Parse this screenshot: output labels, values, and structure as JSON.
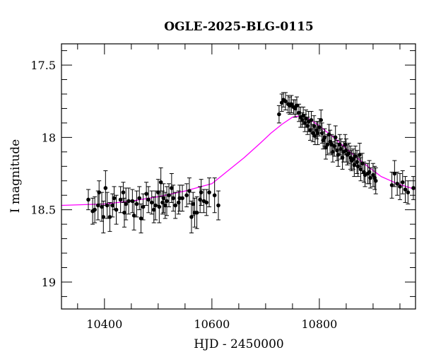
{
  "chart_data": {
    "type": "scatter",
    "title": "OGLE-2025-BLG-0115",
    "xlabel": "HJD - 2450000",
    "ylabel": "I magnitude",
    "xlim": [
      10320,
      10979
    ],
    "ylim": [
      19.186,
      17.353
    ],
    "y_inverted": true,
    "x_ticks": [
      10400,
      10600,
      10800
    ],
    "x_tick_labels": [
      "10400",
      "10600",
      "10800"
    ],
    "x_minor_step": 50,
    "y_ticks": [
      17.5,
      18,
      18.5,
      19
    ],
    "y_tick_labels": [
      "17.5",
      "18",
      "18.5",
      "19"
    ],
    "y_minor_step": 0.1,
    "grid": false,
    "colors": {
      "points": "#000000",
      "errorbars": "#000000",
      "model": "#ff00ff"
    },
    "series": [
      {
        "name": "OGLE photometry",
        "kind": "points-with-errorbars",
        "columns": [
          "hjd",
          "mag",
          "err"
        ],
        "points": [
          [
            10370,
            18.43,
            0.07
          ],
          [
            10378,
            18.51,
            0.09
          ],
          [
            10382,
            18.5,
            0.09
          ],
          [
            10388,
            18.47,
            0.1
          ],
          [
            10390,
            18.38,
            0.08
          ],
          [
            10395,
            18.48,
            0.1
          ],
          [
            10398,
            18.55,
            0.11
          ],
          [
            10402,
            18.35,
            0.12
          ],
          [
            10405,
            18.47,
            0.09
          ],
          [
            10410,
            18.55,
            0.1
          ],
          [
            10415,
            18.47,
            0.08
          ],
          [
            10418,
            18.42,
            0.08
          ],
          [
            10422,
            18.5,
            0.1
          ],
          [
            10430,
            18.43,
            0.09
          ],
          [
            10435,
            18.38,
            0.07
          ],
          [
            10437,
            18.52,
            0.1
          ],
          [
            10440,
            18.46,
            0.11
          ],
          [
            10445,
            18.44,
            0.09
          ],
          [
            10452,
            18.44,
            0.08
          ],
          [
            10455,
            18.54,
            0.1
          ],
          [
            10460,
            18.46,
            0.09
          ],
          [
            10465,
            18.42,
            0.08
          ],
          [
            10468,
            18.56,
            0.1
          ],
          [
            10472,
            18.48,
            0.09
          ],
          [
            10478,
            18.39,
            0.08
          ],
          [
            10482,
            18.43,
            0.09
          ],
          [
            10488,
            18.45,
            0.08
          ],
          [
            10492,
            18.5,
            0.09
          ],
          [
            10495,
            18.47,
            0.1
          ],
          [
            10500,
            18.38,
            0.09
          ],
          [
            10502,
            18.48,
            0.11
          ],
          [
            10505,
            18.31,
            0.1
          ],
          [
            10508,
            18.45,
            0.08
          ],
          [
            10510,
            18.42,
            0.1
          ],
          [
            10513,
            18.47,
            0.09
          ],
          [
            10516,
            18.44,
            0.1
          ],
          [
            10520,
            18.4,
            0.08
          ],
          [
            10525,
            18.35,
            0.1
          ],
          [
            10528,
            18.42,
            0.09
          ],
          [
            10532,
            18.47,
            0.09
          ],
          [
            10538,
            18.45,
            0.08
          ],
          [
            10540,
            18.42,
            0.09
          ],
          [
            10545,
            18.42,
            0.09
          ],
          [
            10553,
            18.4,
            0.08
          ],
          [
            10558,
            18.37,
            0.09
          ],
          [
            10562,
            18.55,
            0.11
          ],
          [
            10565,
            18.46,
            0.08
          ],
          [
            10568,
            18.52,
            0.1
          ],
          [
            10572,
            18.52,
            0.11
          ],
          [
            10578,
            18.43,
            0.09
          ],
          [
            10580,
            18.38,
            0.09
          ],
          [
            10585,
            18.44,
            0.08
          ],
          [
            10590,
            18.45,
            0.09
          ],
          [
            10595,
            18.38,
            0.1
          ],
          [
            10605,
            18.4,
            0.12
          ],
          [
            10612,
            18.47,
            0.1
          ],
          [
            10725,
            17.84,
            0.06
          ],
          [
            10730,
            17.76,
            0.06
          ],
          [
            10733,
            17.74,
            0.05
          ],
          [
            10737,
            17.75,
            0.06
          ],
          [
            10742,
            17.77,
            0.06
          ],
          [
            10745,
            17.78,
            0.06
          ],
          [
            10748,
            17.77,
            0.06
          ],
          [
            10752,
            17.79,
            0.05
          ],
          [
            10755,
            17.8,
            0.06
          ],
          [
            10758,
            17.78,
            0.06
          ],
          [
            10762,
            17.83,
            0.06
          ],
          [
            10765,
            17.86,
            0.07
          ],
          [
            10768,
            17.88,
            0.05
          ],
          [
            10770,
            17.85,
            0.06
          ],
          [
            10773,
            17.9,
            0.06
          ],
          [
            10775,
            17.87,
            0.06
          ],
          [
            10778,
            17.92,
            0.06
          ],
          [
            10780,
            17.89,
            0.07
          ],
          [
            10783,
            17.95,
            0.07
          ],
          [
            10785,
            17.88,
            0.06
          ],
          [
            10788,
            17.97,
            0.06
          ],
          [
            10790,
            17.92,
            0.07
          ],
          [
            10792,
            17.99,
            0.06
          ],
          [
            10795,
            17.95,
            0.06
          ],
          [
            10797,
            17.97,
            0.08
          ],
          [
            10800,
            17.93,
            0.06
          ],
          [
            10803,
            17.88,
            0.07
          ],
          [
            10805,
            17.97,
            0.07
          ],
          [
            10807,
            18.02,
            0.06
          ],
          [
            10810,
            18.0,
            0.06
          ],
          [
            10812,
            18.07,
            0.08
          ],
          [
            10815,
            18.05,
            0.07
          ],
          [
            10818,
            17.98,
            0.07
          ],
          [
            10820,
            18.03,
            0.08
          ],
          [
            10823,
            18.05,
            0.07
          ],
          [
            10825,
            18.1,
            0.07
          ],
          [
            10828,
            18.06,
            0.07
          ],
          [
            10830,
            18.0,
            0.08
          ],
          [
            10833,
            18.09,
            0.07
          ],
          [
            10835,
            18.12,
            0.08
          ],
          [
            10838,
            18.05,
            0.07
          ],
          [
            10840,
            18.08,
            0.07
          ],
          [
            10843,
            18.14,
            0.08
          ],
          [
            10845,
            18.1,
            0.07
          ],
          [
            10848,
            18.05,
            0.07
          ],
          [
            10850,
            18.09,
            0.08
          ],
          [
            10852,
            18.12,
            0.07
          ],
          [
            10855,
            18.11,
            0.07
          ],
          [
            10858,
            18.14,
            0.08
          ],
          [
            10860,
            18.16,
            0.07
          ],
          [
            10863,
            18.15,
            0.07
          ],
          [
            10865,
            18.19,
            0.08
          ],
          [
            10867,
            18.13,
            0.07
          ],
          [
            10870,
            18.17,
            0.08
          ],
          [
            10872,
            18.2,
            0.07
          ],
          [
            10875,
            18.12,
            0.08
          ],
          [
            10877,
            18.22,
            0.08
          ],
          [
            10880,
            18.18,
            0.07
          ],
          [
            10883,
            18.24,
            0.07
          ],
          [
            10885,
            18.26,
            0.08
          ],
          [
            10890,
            18.25,
            0.07
          ],
          [
            10893,
            18.24,
            0.08
          ],
          [
            10895,
            18.28,
            0.07
          ],
          [
            10900,
            18.26,
            0.08
          ],
          [
            10903,
            18.28,
            0.08
          ],
          [
            10905,
            18.3,
            0.09
          ],
          [
            10935,
            18.33,
            0.09
          ],
          [
            10940,
            18.25,
            0.09
          ],
          [
            10945,
            18.32,
            0.08
          ],
          [
            10950,
            18.34,
            0.09
          ],
          [
            10955,
            18.31,
            0.08
          ],
          [
            10960,
            18.36,
            0.09
          ],
          [
            10965,
            18.38,
            0.08
          ],
          [
            10975,
            18.35,
            0.08
          ]
        ]
      },
      {
        "name": "model",
        "kind": "line",
        "columns": [
          "hjd",
          "mag"
        ],
        "points": [
          [
            10320,
            18.47
          ],
          [
            10400,
            18.46
          ],
          [
            10450,
            18.44
          ],
          [
            10500,
            18.41
          ],
          [
            10550,
            18.37
          ],
          [
            10600,
            18.32
          ],
          [
            10630,
            18.23
          ],
          [
            10660,
            18.14
          ],
          [
            10690,
            18.04
          ],
          [
            10710,
            17.97
          ],
          [
            10730,
            17.91
          ],
          [
            10750,
            17.86
          ],
          [
            10765,
            17.85
          ],
          [
            10780,
            17.87
          ],
          [
            10800,
            17.92
          ],
          [
            10830,
            18.01
          ],
          [
            10860,
            18.11
          ],
          [
            10890,
            18.2
          ],
          [
            10915,
            18.27
          ],
          [
            10945,
            18.32
          ],
          [
            10979,
            18.36
          ]
        ]
      }
    ]
  }
}
